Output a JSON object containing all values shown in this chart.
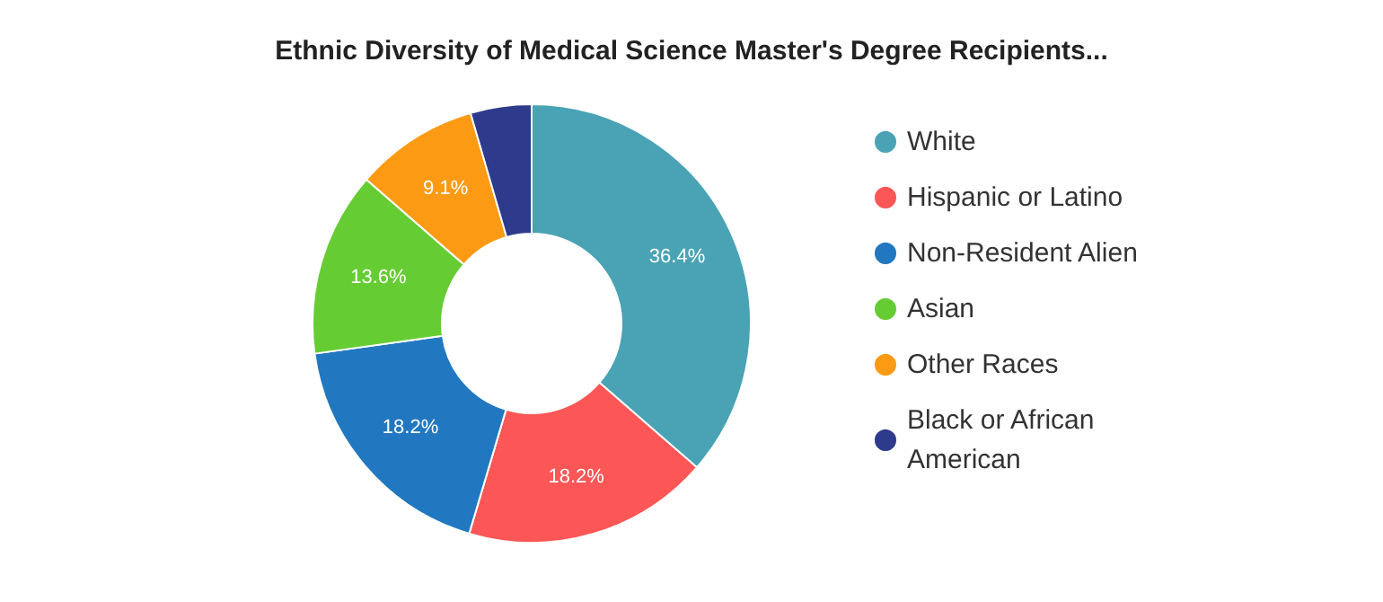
{
  "chart_data": {
    "type": "donut",
    "title": "Ethnic Diversity of Medical Science Master's Degree Recipients...",
    "categories": [
      "White",
      "Hispanic or Latino",
      "Non-Resident Alien",
      "Asian",
      "Other Races",
      "Black or African American"
    ],
    "values": [
      36.4,
      18.2,
      18.2,
      13.6,
      9.1,
      4.5
    ],
    "colors": [
      "#4aa3b5",
      "#fc5656",
      "#2178c0",
      "#66cc33",
      "#fc9a13",
      "#2e3a8c"
    ],
    "value_labels": [
      "36.4%",
      "18.2%",
      "18.2%",
      "13.6%",
      "9.1%",
      null
    ],
    "legend": "right"
  }
}
